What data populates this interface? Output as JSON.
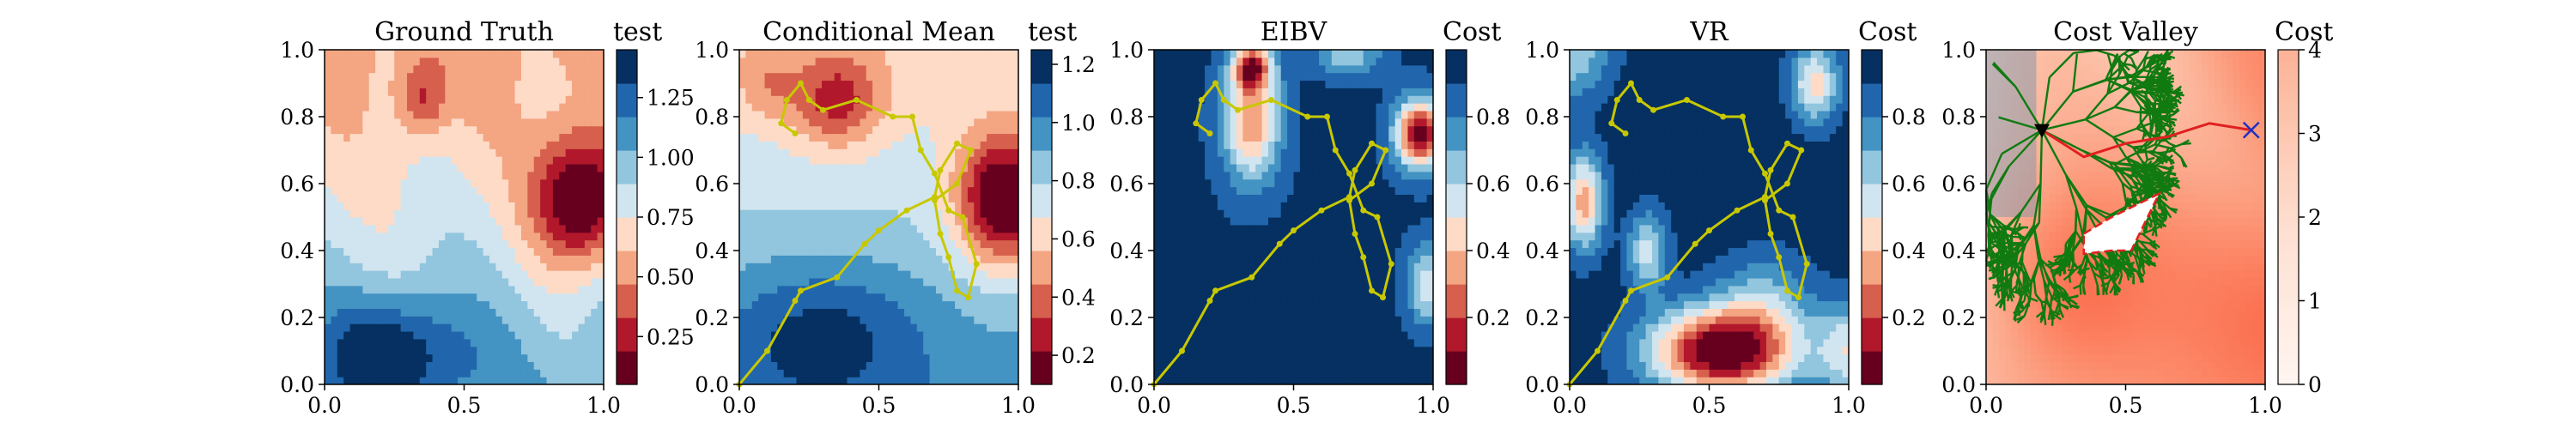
{
  "chart_data": [
    {
      "type": "heatmap",
      "title": "Ground Truth",
      "xlim": [
        0,
        1
      ],
      "ylim": [
        0,
        1
      ],
      "x_ticks": [
        "0.0",
        "0.5",
        "1.0"
      ],
      "y_ticks": [
        "0.0",
        "0.2",
        "0.4",
        "0.6",
        "0.8",
        "1.0"
      ],
      "colorbar": {
        "label": "test",
        "range": [
          0.05,
          1.45
        ],
        "ticks": [
          0.25,
          0.5,
          0.75,
          1.0,
          1.25
        ],
        "tick_labels": [
          "0.25",
          "0.50",
          "0.75",
          "1.00",
          "1.25"
        ]
      },
      "colormap": "RdBu",
      "color_levels": 10
    },
    {
      "type": "heatmap",
      "title": "Conditional Mean",
      "xlim": [
        0,
        1
      ],
      "ylim": [
        0,
        1
      ],
      "x_ticks": [
        "0.0",
        "0.5",
        "1.0"
      ],
      "y_ticks": [
        "0.0",
        "0.2",
        "0.4",
        "0.6",
        "0.8",
        "1.0"
      ],
      "colorbar": {
        "label": "test",
        "range": [
          0.1,
          1.25
        ],
        "ticks": [
          0.2,
          0.4,
          0.6,
          0.8,
          1.0,
          1.2
        ],
        "tick_labels": [
          "0.2",
          "0.4",
          "0.6",
          "0.8",
          "1.0",
          "1.2"
        ]
      },
      "colormap": "RdBu",
      "color_levels": 10,
      "path": {
        "color": "#c8c800",
        "points": [
          [
            0.0,
            0.0
          ],
          [
            0.1,
            0.1
          ],
          [
            0.2,
            0.25
          ],
          [
            0.22,
            0.28
          ],
          [
            0.35,
            0.32
          ],
          [
            0.45,
            0.42
          ],
          [
            0.5,
            0.46
          ],
          [
            0.6,
            0.52
          ],
          [
            0.7,
            0.56
          ],
          [
            0.72,
            0.64
          ],
          [
            0.78,
            0.72
          ],
          [
            0.83,
            0.7
          ],
          [
            0.78,
            0.6
          ],
          [
            0.7,
            0.55
          ],
          [
            0.72,
            0.45
          ],
          [
            0.75,
            0.38
          ],
          [
            0.78,
            0.28
          ],
          [
            0.82,
            0.26
          ],
          [
            0.85,
            0.36
          ],
          [
            0.8,
            0.5
          ],
          [
            0.75,
            0.52
          ],
          [
            0.7,
            0.63
          ],
          [
            0.65,
            0.7
          ],
          [
            0.62,
            0.8
          ],
          [
            0.55,
            0.8
          ],
          [
            0.42,
            0.85
          ],
          [
            0.3,
            0.82
          ],
          [
            0.25,
            0.85
          ],
          [
            0.22,
            0.9
          ],
          [
            0.17,
            0.85
          ],
          [
            0.15,
            0.78
          ],
          [
            0.2,
            0.75
          ]
        ]
      }
    },
    {
      "type": "heatmap",
      "title": "EIBV",
      "xlim": [
        0,
        1
      ],
      "ylim": [
        0,
        1
      ],
      "x_ticks": [
        "0.0",
        "0.5",
        "1.0"
      ],
      "y_ticks": [
        "0.0",
        "0.2",
        "0.4",
        "0.6",
        "0.8",
        "1.0"
      ],
      "colorbar": {
        "label": "Cost",
        "range": [
          0.0,
          1.0
        ],
        "ticks": [
          0.2,
          0.4,
          0.6,
          0.8
        ],
        "tick_labels": [
          "0.2",
          "0.4",
          "0.6",
          "0.8"
        ]
      },
      "colormap": "RdBu",
      "color_levels": 10,
      "path": {
        "color": "#c8c800",
        "points": [
          [
            0.0,
            0.0
          ],
          [
            0.1,
            0.1
          ],
          [
            0.2,
            0.25
          ],
          [
            0.22,
            0.28
          ],
          [
            0.35,
            0.32
          ],
          [
            0.45,
            0.42
          ],
          [
            0.5,
            0.46
          ],
          [
            0.6,
            0.52
          ],
          [
            0.7,
            0.56
          ],
          [
            0.72,
            0.64
          ],
          [
            0.78,
            0.72
          ],
          [
            0.83,
            0.7
          ],
          [
            0.78,
            0.6
          ],
          [
            0.7,
            0.55
          ],
          [
            0.72,
            0.45
          ],
          [
            0.75,
            0.38
          ],
          [
            0.78,
            0.28
          ],
          [
            0.82,
            0.26
          ],
          [
            0.85,
            0.36
          ],
          [
            0.8,
            0.5
          ],
          [
            0.75,
            0.52
          ],
          [
            0.7,
            0.63
          ],
          [
            0.65,
            0.7
          ],
          [
            0.62,
            0.8
          ],
          [
            0.55,
            0.8
          ],
          [
            0.42,
            0.85
          ],
          [
            0.3,
            0.82
          ],
          [
            0.25,
            0.85
          ],
          [
            0.22,
            0.9
          ],
          [
            0.17,
            0.85
          ],
          [
            0.15,
            0.78
          ],
          [
            0.2,
            0.75
          ]
        ]
      }
    },
    {
      "type": "heatmap",
      "title": "VR",
      "xlim": [
        0,
        1
      ],
      "ylim": [
        0,
        1
      ],
      "x_ticks": [
        "0.0",
        "0.5",
        "1.0"
      ],
      "y_ticks": [
        "0.0",
        "0.2",
        "0.4",
        "0.6",
        "0.8",
        "1.0"
      ],
      "colorbar": {
        "label": "Cost",
        "range": [
          0.0,
          1.0
        ],
        "ticks": [
          0.2,
          0.4,
          0.6,
          0.8
        ],
        "tick_labels": [
          "0.2",
          "0.4",
          "0.6",
          "0.8"
        ]
      },
      "colormap": "RdBu",
      "color_levels": 10,
      "path": {
        "color": "#c8c800",
        "points": [
          [
            0.0,
            0.0
          ],
          [
            0.1,
            0.1
          ],
          [
            0.2,
            0.25
          ],
          [
            0.22,
            0.28
          ],
          [
            0.35,
            0.32
          ],
          [
            0.45,
            0.42
          ],
          [
            0.5,
            0.46
          ],
          [
            0.6,
            0.52
          ],
          [
            0.7,
            0.56
          ],
          [
            0.72,
            0.64
          ],
          [
            0.78,
            0.72
          ],
          [
            0.83,
            0.7
          ],
          [
            0.78,
            0.6
          ],
          [
            0.7,
            0.55
          ],
          [
            0.72,
            0.45
          ],
          [
            0.75,
            0.38
          ],
          [
            0.78,
            0.28
          ],
          [
            0.82,
            0.26
          ],
          [
            0.85,
            0.36
          ],
          [
            0.8,
            0.5
          ],
          [
            0.75,
            0.52
          ],
          [
            0.7,
            0.63
          ],
          [
            0.65,
            0.7
          ],
          [
            0.62,
            0.8
          ],
          [
            0.55,
            0.8
          ],
          [
            0.42,
            0.85
          ],
          [
            0.3,
            0.82
          ],
          [
            0.25,
            0.85
          ],
          [
            0.22,
            0.9
          ],
          [
            0.17,
            0.85
          ],
          [
            0.15,
            0.78
          ],
          [
            0.2,
            0.75
          ]
        ]
      }
    },
    {
      "type": "heatmap",
      "title": "Cost Valley",
      "xlim": [
        0,
        1
      ],
      "ylim": [
        0,
        1
      ],
      "x_ticks": [
        "0.0",
        "0.5",
        "1.0"
      ],
      "y_ticks": [
        "0.0",
        "0.2",
        "0.4",
        "0.6",
        "0.8",
        "1.0"
      ],
      "colorbar": {
        "label": "Cost",
        "range": [
          0,
          4
        ],
        "ticks": [
          0,
          1,
          2,
          3,
          4
        ],
        "tick_labels": [
          "0",
          "1",
          "2",
          "3",
          "4"
        ]
      },
      "colormap": "Reds",
      "tree_color": "#117a11",
      "tree_root": [
        0.2,
        0.76
      ],
      "best_path": {
        "color": "#e02020",
        "points": [
          [
            0.2,
            0.76
          ],
          [
            0.35,
            0.68
          ],
          [
            0.5,
            0.72
          ],
          [
            0.65,
            0.74
          ],
          [
            0.8,
            0.78
          ],
          [
            0.95,
            0.76
          ]
        ]
      },
      "start_marker": [
        0.2,
        0.76
      ],
      "goal_marker": [
        0.95,
        0.76
      ],
      "obstacle": [
        [
          0.35,
          0.45
        ],
        [
          0.45,
          0.5
        ],
        [
          0.62,
          0.57
        ],
        [
          0.52,
          0.4
        ],
        [
          0.45,
          0.4
        ],
        [
          0.35,
          0.39
        ]
      ]
    }
  ]
}
